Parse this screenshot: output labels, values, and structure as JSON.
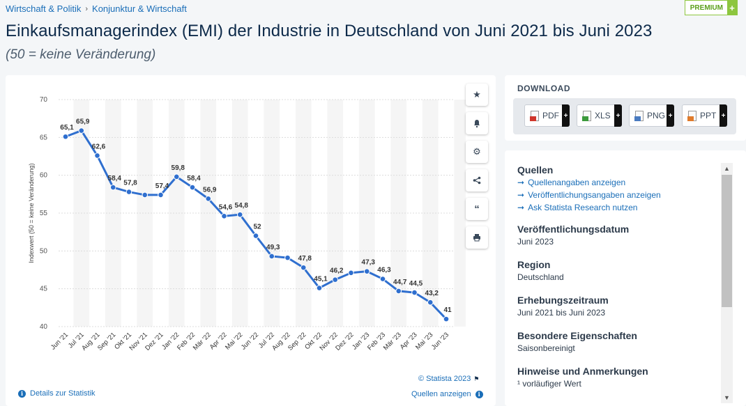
{
  "breadcrumb": {
    "item1": "Wirtschaft & Politik",
    "item2": "Konjunktur & Wirtschaft",
    "sep": "›"
  },
  "premium": {
    "label": "PREMIUM",
    "plus": "+"
  },
  "title": "Einkaufsmanagerindex (EMI) der Industrie in Deutschland von Juni 2021 bis Juni 2023",
  "subtitle": "(50 = keine Veränderung)",
  "tools": [
    "star-icon",
    "bell-icon",
    "gear-icon",
    "share-icon",
    "quote-icon",
    "print-icon"
  ],
  "chart_footer": {
    "copyright": "© Statista 2023",
    "details": "Details zur Statistik",
    "sources": "Quellen anzeigen"
  },
  "download": {
    "title": "DOWNLOAD",
    "buttons": [
      {
        "label": "PDF",
        "color": "#d0362b"
      },
      {
        "label": "XLS",
        "color": "#3c9a3c"
      },
      {
        "label": "PNG",
        "color": "#4a7bc0"
      },
      {
        "label": "PPT",
        "color": "#e07b2b"
      }
    ]
  },
  "info": {
    "sources_heading": "Quellen",
    "links": [
      "Quellenangaben anzeigen",
      "Veröffentlichungsangaben anzeigen",
      "Ask Statista Research nutzen"
    ],
    "pub_date_heading": "Veröffentlichungsdatum",
    "pub_date": "Juni 2023",
    "region_heading": "Region",
    "region": "Deutschland",
    "period_heading": "Erhebungszeitraum",
    "period": "Juni 2021 bis Juni 2023",
    "special_heading": "Besondere Eigenschaften",
    "special": "Saisonbereinigt",
    "notes_heading": "Hinweise und Anmerkungen",
    "notes": "¹ vorläufiger Wert"
  },
  "chart_data": {
    "type": "line",
    "ylabel": "Indexwert (50 = keine Veränderung)",
    "ylim": [
      40,
      70
    ],
    "yticks": [
      40,
      45,
      50,
      55,
      60,
      65,
      70
    ],
    "categories": [
      "Jun '21",
      "Jul '21",
      "Aug '21",
      "Sep '21",
      "Okt '21",
      "Nov '21",
      "Dez '21",
      "Jan '22",
      "Feb '22",
      "Mär '22",
      "Apr '22",
      "Mai '22",
      "Jun '22",
      "Jul '22",
      "Aug '22",
      "Sep '22",
      "Okt '22",
      "Nov '22",
      "Dez '22",
      "Jan '23",
      "Feb '23",
      "Mär '23",
      "Apr '23",
      "Mai '23",
      "Jun '23"
    ],
    "values": [
      65.1,
      65.9,
      62.6,
      58.4,
      57.8,
      57.4,
      57.4,
      59.8,
      58.4,
      56.9,
      54.6,
      54.8,
      52,
      49.3,
      49.1,
      47.8,
      45.1,
      46.2,
      47.1,
      47.3,
      46.3,
      44.7,
      44.5,
      43.2,
      41
    ],
    "labels": [
      "65,1",
      "65,9",
      "62,6",
      "58,4",
      "57,8",
      "",
      "57,4",
      "59,8",
      "58,4",
      "56,9",
      "54,6",
      "54,8",
      "52",
      "49,3",
      "",
      "47,8",
      "45,1",
      "46,2",
      "",
      "47,3",
      "46,3",
      "44,7",
      "44,5",
      "43,2",
      "41"
    ],
    "line_color": "#2f6fcf",
    "grid": true
  }
}
